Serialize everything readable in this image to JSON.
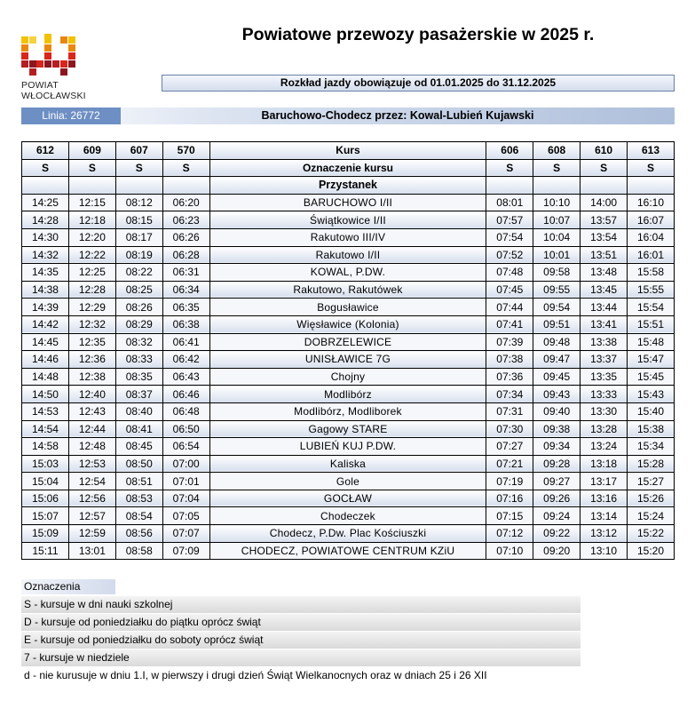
{
  "header": {
    "logo_line1": "POWIAT",
    "logo_line2": "WŁOCŁAWSKI",
    "title": "Powiatowe przewozy pasażerskie w 2025 r.",
    "validity": "Rozkład jazdy obowiązuje od 01.01.2025 do 31.12.2025",
    "logo_colors": [
      "#f2c200",
      "#e9870e",
      "#d8261c",
      "#8c1620"
    ]
  },
  "line": {
    "label": "Linia: 26772",
    "route": "Baruchowo-Chodecz przez: Kowal-Lubień Kujawski"
  },
  "table": {
    "left_courses": [
      "612",
      "609",
      "607",
      "570"
    ],
    "right_courses": [
      "606",
      "608",
      "610",
      "613"
    ],
    "course_header": "Kurs",
    "marking_header": "Oznaczenie kursu",
    "left_markings": [
      "S",
      "S",
      "S",
      "S"
    ],
    "right_markings": [
      "S",
      "S",
      "S",
      "S"
    ],
    "stop_header": "Przystanek",
    "rows": [
      {
        "left": [
          "14:25",
          "12:15",
          "08:12",
          "06:20"
        ],
        "stop": "BARUCHOWO I/II",
        "right": [
          "08:01",
          "10:10",
          "14:00",
          "16:10"
        ]
      },
      {
        "left": [
          "14:28",
          "12:18",
          "08:15",
          "06:23"
        ],
        "stop": "Świątkowice I/II",
        "right": [
          "07:57",
          "10:07",
          "13:57",
          "16:07"
        ]
      },
      {
        "left": [
          "14:30",
          "12:20",
          "08:17",
          "06:26"
        ],
        "stop": "Rakutowo III/IV",
        "right": [
          "07:54",
          "10:04",
          "13:54",
          "16:04"
        ]
      },
      {
        "left": [
          "14:32",
          "12:22",
          "08:19",
          "06:28"
        ],
        "stop": "Rakutowo I/II",
        "right": [
          "07:52",
          "10:01",
          "13:51",
          "16:01"
        ]
      },
      {
        "left": [
          "14:35",
          "12:25",
          "08:22",
          "06:31"
        ],
        "stop": "KOWAL, P.DW.",
        "right": [
          "07:48",
          "09:58",
          "13:48",
          "15:58"
        ]
      },
      {
        "left": [
          "14:38",
          "12:28",
          "08:25",
          "06:34"
        ],
        "stop": "Rakutowo, Rakutówek",
        "right": [
          "07:45",
          "09:55",
          "13:45",
          "15:55"
        ]
      },
      {
        "left": [
          "14:39",
          "12:29",
          "08:26",
          "06:35"
        ],
        "stop": "Bogusławice",
        "right": [
          "07:44",
          "09:54",
          "13:44",
          "15:54"
        ]
      },
      {
        "left": [
          "14:42",
          "12:32",
          "08:29",
          "06:38"
        ],
        "stop": "Więsławice (Kolonia)",
        "right": [
          "07:41",
          "09:51",
          "13:41",
          "15:51"
        ]
      },
      {
        "left": [
          "14:45",
          "12:35",
          "08:32",
          "06:41"
        ],
        "stop": "DOBRZELEWICE",
        "right": [
          "07:39",
          "09:48",
          "13:38",
          "15:48"
        ]
      },
      {
        "left": [
          "14:46",
          "12:36",
          "08:33",
          "06:42"
        ],
        "stop": "UNISŁAWICE 7G",
        "right": [
          "07:38",
          "09:47",
          "13:37",
          "15:47"
        ]
      },
      {
        "left": [
          "14:48",
          "12:38",
          "08:35",
          "06:43"
        ],
        "stop": "Chojny",
        "right": [
          "07:36",
          "09:45",
          "13:35",
          "15:45"
        ]
      },
      {
        "left": [
          "14:50",
          "12:40",
          "08:37",
          "06:46"
        ],
        "stop": "Modlibórz",
        "right": [
          "07:34",
          "09:43",
          "13:33",
          "15:43"
        ]
      },
      {
        "left": [
          "14:53",
          "12:43",
          "08:40",
          "06:48"
        ],
        "stop": "Modlibórz, Modliborek",
        "right": [
          "07:31",
          "09:40",
          "13:30",
          "15:40"
        ]
      },
      {
        "left": [
          "14:54",
          "12:44",
          "08:41",
          "06:50"
        ],
        "stop": "Gagowy STARE",
        "right": [
          "07:30",
          "09:38",
          "13:28",
          "15:38"
        ]
      },
      {
        "left": [
          "14:58",
          "12:48",
          "08:45",
          "06:54"
        ],
        "stop": "LUBIEŃ KUJ P.DW.",
        "right": [
          "07:27",
          "09:34",
          "13:24",
          "15:34"
        ]
      },
      {
        "left": [
          "15:03",
          "12:53",
          "08:50",
          "07:00"
        ],
        "stop": "Kaliska",
        "right": [
          "07:21",
          "09:28",
          "13:18",
          "15:28"
        ]
      },
      {
        "left": [
          "15:04",
          "12:54",
          "08:51",
          "07:01"
        ],
        "stop": "Gole",
        "right": [
          "07:19",
          "09:27",
          "13:17",
          "15:27"
        ]
      },
      {
        "left": [
          "15:06",
          "12:56",
          "08:53",
          "07:04"
        ],
        "stop": "GOCŁAW",
        "right": [
          "07:16",
          "09:26",
          "13:16",
          "15:26"
        ]
      },
      {
        "left": [
          "15:07",
          "12:57",
          "08:54",
          "07:05"
        ],
        "stop": "Chodeczek",
        "right": [
          "07:15",
          "09:24",
          "13:14",
          "15:24"
        ]
      },
      {
        "left": [
          "15:09",
          "12:59",
          "08:56",
          "07:07"
        ],
        "stop": "Chodecz, P.Dw. Plac Kościuszki",
        "right": [
          "07:12",
          "09:22",
          "13:12",
          "15:22"
        ]
      },
      {
        "left": [
          "15:11",
          "13:01",
          "08:58",
          "07:09"
        ],
        "stop": "CHODECZ,  POWIATOWE CENTRUM KZiU",
        "right": [
          "07:10",
          "09:20",
          "13:10",
          "15:20"
        ]
      }
    ]
  },
  "legend": {
    "title": "Oznaczenia",
    "items": [
      "S - kursuje w dni nauki szkolnej",
      "D - kursuje od poniedziałku do piątku oprócz świąt",
      "E - kursuje od poniedziałku do soboty oprócz świąt",
      "7 - kursuje w niedziele",
      "d - nie kurusuje w dniu 1.I, w pierwszy i drugi dzień Świąt Wielkanocnych oraz w dniach 25 i 26 XII"
    ]
  }
}
